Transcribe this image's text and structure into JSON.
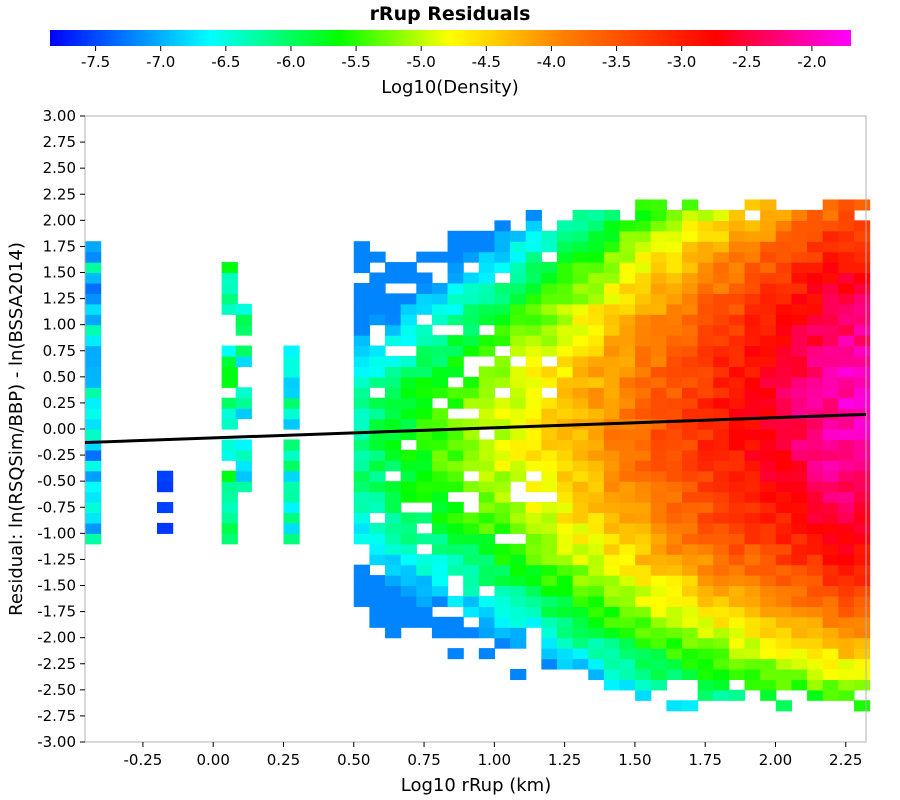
{
  "chart_data": {
    "type": "heatmap",
    "title": "rRup Residuals",
    "xlabel": "Log10 rRup (km)",
    "ylabel": "Residual: ln(RSQSim/BBP) - ln(BSSA2014)",
    "xlim": [
      -0.456,
      2.322
    ],
    "ylim": [
      -3.0,
      3.0
    ],
    "x_ticks": [
      "-0.25",
      "0.00",
      "0.25",
      "0.50",
      "0.75",
      "1.00",
      "1.25",
      "1.50",
      "1.75",
      "2.00",
      "2.25"
    ],
    "y_ticks": [
      "-3.00",
      "-2.75",
      "-2.50",
      "-2.25",
      "-2.00",
      "-1.75",
      "-1.50",
      "-1.25",
      "-1.00",
      "-0.75",
      "-0.50",
      "-0.25",
      "0.00",
      "0.25",
      "0.50",
      "0.75",
      "1.00",
      "1.25",
      "1.50",
      "1.75",
      "2.00",
      "2.25",
      "2.50",
      "2.75",
      "3.00"
    ],
    "colorbar": {
      "label": "Log10(Density)",
      "range": [
        -7.85,
        -1.7
      ],
      "ticks": [
        "-7.5",
        "-7.0",
        "-6.5",
        "-6.0",
        "-5.5",
        "-5.0",
        "-4.5",
        "-4.0",
        "-3.5",
        "-3.0",
        "-2.5",
        "-2.0"
      ],
      "colormap": [
        "#0000ff",
        "#00ffff",
        "#00ff00",
        "#ffff00",
        "#ff8000",
        "#ff0000",
        "#ff00ff"
      ]
    },
    "bin_width_x": 0.0556,
    "bin_width_y": 0.1,
    "fit_line": {
      "x": [
        -0.456,
        2.322
      ],
      "y": [
        -0.13,
        0.14
      ],
      "color": "#000000"
    },
    "density_bins": [
      {
        "x_range": [
          -0.456,
          -0.4
        ],
        "y_range": [
          -1.1,
          1.8
        ],
        "peak": -7.2
      },
      {
        "x_range": [
          -0.23,
          -0.12
        ],
        "y_range": [
          -1.0,
          -0.4
        ],
        "peak": -7.6
      },
      {
        "x_range": [
          0.03,
          0.12
        ],
        "y_range": [
          -1.1,
          1.7
        ],
        "peak": -6.4
      },
      {
        "x_range": [
          0.25,
          0.31
        ],
        "y_range": [
          -1.1,
          0.8
        ],
        "peak": -6.8
      },
      {
        "x_range": [
          0.5,
          2.322
        ],
        "y_range": [
          -2.6,
          2.15
        ],
        "peak": -2.0
      }
    ]
  }
}
